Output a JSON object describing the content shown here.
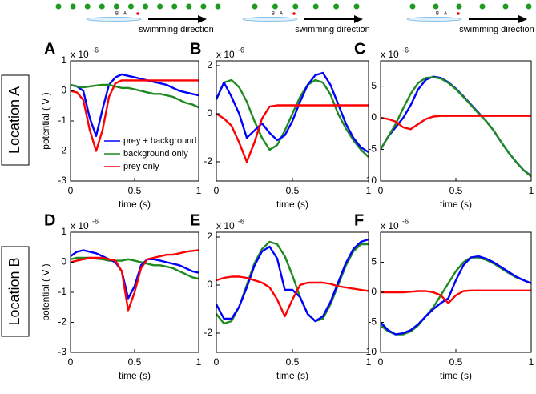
{
  "row_labels": [
    "Location A",
    "Location B"
  ],
  "schematics": [
    {
      "fish_labels": [
        "B",
        "A"
      ],
      "text": "swimming direction"
    },
    {
      "fish_labels": [
        "B",
        "A"
      ],
      "text": "swimming direction"
    },
    {
      "fish_labels": [
        "B",
        "A"
      ],
      "text": "swimming direction"
    }
  ],
  "chart_data": [
    {
      "type": "line",
      "label": "A",
      "multiplier": {
        "base": "x 10",
        "exponent": "-6"
      },
      "xlabel": "time (s)",
      "ylabel": "potential ( V )",
      "legend": true,
      "x": [
        0,
        0.05,
        0.1,
        0.15,
        0.2,
        0.25,
        0.3,
        0.35,
        0.4,
        0.45,
        0.5,
        0.55,
        0.6,
        0.65,
        0.7,
        0.75,
        0.8,
        0.85,
        0.9,
        0.95,
        1
      ],
      "xlim": [
        0,
        1
      ],
      "xticks": [
        0,
        0.5,
        1
      ],
      "ylim": [
        -3,
        1
      ],
      "yticks": [
        -3,
        -2,
        -1,
        0,
        1
      ],
      "series": [
        {
          "name": "prey + background",
          "color": "#0000ff",
          "values": [
            0.2,
            0.15,
            0,
            -0.9,
            -1.5,
            -0.6,
            0.2,
            0.45,
            0.55,
            0.5,
            0.45,
            0.4,
            0.35,
            0.3,
            0.25,
            0.2,
            0.1,
            0,
            -0.05,
            -0.1,
            -0.15
          ]
        },
        {
          "name": "background only",
          "color": "#1f8a1f",
          "values": [
            0.2,
            0.15,
            0.12,
            0.15,
            0.18,
            0.2,
            0.2,
            0.15,
            0.1,
            0.1,
            0.05,
            0,
            -0.05,
            -0.1,
            -0.1,
            -0.15,
            -0.2,
            -0.3,
            -0.4,
            -0.45,
            -0.55
          ]
        },
        {
          "name": "prey only",
          "color": "#ff0000",
          "values": [
            0,
            -0.05,
            -0.3,
            -1.3,
            -2.0,
            -1.3,
            -0.2,
            0.25,
            0.35,
            0.35,
            0.35,
            0.35,
            0.35,
            0.35,
            0.35,
            0.35,
            0.35,
            0.35,
            0.35,
            0.35,
            0.35
          ]
        }
      ]
    },
    {
      "type": "line",
      "label": "B",
      "multiplier": {
        "base": "x 10",
        "exponent": "-6"
      },
      "xlabel": "time (s)",
      "x": [
        0,
        0.05,
        0.1,
        0.15,
        0.2,
        0.25,
        0.3,
        0.35,
        0.4,
        0.45,
        0.5,
        0.55,
        0.6,
        0.65,
        0.7,
        0.75,
        0.8,
        0.85,
        0.9,
        0.95,
        1
      ],
      "xlim": [
        0,
        1
      ],
      "xticks": [
        0,
        0.5,
        1
      ],
      "ylim": [
        -2.8,
        2.2
      ],
      "yticks": [
        -2,
        0,
        2
      ],
      "series": [
        {
          "color": "#1f8a1f",
          "values": [
            0.6,
            1.3,
            1.4,
            1.1,
            0.5,
            -0.3,
            -1.0,
            -1.5,
            -1.3,
            -0.7,
            0,
            0.7,
            1.2,
            1.4,
            1.3,
            0.8,
            0,
            -0.6,
            -1.1,
            -1.5,
            -1.8
          ]
        },
        {
          "color": "#0000ff",
          "values": [
            0.6,
            1.3,
            0.7,
            0,
            -1.0,
            -0.7,
            -0.4,
            -0.8,
            -1.1,
            -0.9,
            -0.3,
            0.5,
            1.2,
            1.6,
            1.7,
            1.2,
            0.4,
            -0.4,
            -1.0,
            -1.4,
            -1.6
          ]
        },
        {
          "color": "#ff0000",
          "values": [
            0,
            -0.2,
            -0.5,
            -1.2,
            -2.0,
            -1.2,
            -0.2,
            0.3,
            0.35,
            0.35,
            0.35,
            0.35,
            0.35,
            0.35,
            0.35,
            0.35,
            0.35,
            0.35,
            0.35,
            0.35,
            0.35
          ]
        }
      ]
    },
    {
      "type": "line",
      "label": "C",
      "multiplier": {
        "base": "x 10",
        "exponent": "-6"
      },
      "xlabel": "time (s)",
      "x": [
        0,
        0.05,
        0.1,
        0.15,
        0.2,
        0.25,
        0.3,
        0.35,
        0.4,
        0.45,
        0.5,
        0.55,
        0.6,
        0.65,
        0.7,
        0.75,
        0.8,
        0.85,
        0.9,
        0.95,
        1
      ],
      "xlim": [
        0,
        1
      ],
      "xticks": [
        0,
        0.5,
        1
      ],
      "ylim": [
        -10,
        9
      ],
      "yticks": [
        -10,
        -5,
        0,
        5
      ],
      "series": [
        {
          "color": "#0000ff",
          "values": [
            -5,
            -3,
            -1.5,
            0,
            2,
            4.5,
            6,
            6.5,
            6.3,
            5.6,
            4.6,
            3.4,
            2.1,
            0.8,
            -0.5,
            -2,
            -3.8,
            -5.5,
            -7,
            -8.3,
            -9.2
          ]
        },
        {
          "color": "#1f8a1f",
          "values": [
            -5,
            -3,
            -1,
            1.5,
            3.8,
            5.5,
            6.3,
            6.4,
            6.2,
            5.5,
            4.5,
            3.3,
            2,
            0.7,
            -0.5,
            -2,
            -3.8,
            -5.5,
            -7,
            -8.3,
            -9.3
          ]
        },
        {
          "color": "#ff0000",
          "values": [
            0,
            -0.2,
            -0.6,
            -1.5,
            -1.8,
            -1,
            -0.2,
            0.2,
            0.3,
            0.3,
            0.3,
            0.3,
            0.3,
            0.3,
            0.3,
            0.3,
            0.3,
            0.3,
            0.3,
            0.3,
            0.3
          ]
        }
      ]
    },
    {
      "type": "line",
      "label": "D",
      "multiplier": {
        "base": "x 10",
        "exponent": "-6"
      },
      "xlabel": "time (s)",
      "ylabel": "potential ( V )",
      "x": [
        0,
        0.05,
        0.1,
        0.15,
        0.2,
        0.25,
        0.3,
        0.35,
        0.4,
        0.45,
        0.5,
        0.55,
        0.6,
        0.65,
        0.7,
        0.75,
        0.8,
        0.85,
        0.9,
        0.95,
        1
      ],
      "xlim": [
        0,
        1
      ],
      "xticks": [
        0,
        0.5,
        1
      ],
      "ylim": [
        -3,
        1
      ],
      "yticks": [
        -3,
        -2,
        -1,
        0,
        1
      ],
      "series": [
        {
          "color": "#1f8a1f",
          "values": [
            0.1,
            0.15,
            0.15,
            0.15,
            0.12,
            0.1,
            0.05,
            0.05,
            0.05,
            0.1,
            0.05,
            0,
            -0.05,
            -0.1,
            -0.1,
            -0.15,
            -0.2,
            -0.3,
            -0.4,
            -0.5,
            -0.55
          ]
        },
        {
          "color": "#0000ff",
          "values": [
            0.2,
            0.35,
            0.4,
            0.35,
            0.3,
            0.2,
            0.1,
            0,
            -0.3,
            -1.2,
            -0.8,
            -0.1,
            0.1,
            0.1,
            0.05,
            0,
            -0.05,
            -0.1,
            -0.2,
            -0.3,
            -0.35
          ]
        },
        {
          "color": "#ff0000",
          "values": [
            0,
            0.05,
            0.1,
            0.15,
            0.15,
            0.15,
            0.1,
            0.05,
            -0.3,
            -1.6,
            -1.0,
            -0.2,
            0.1,
            0.15,
            0.2,
            0.25,
            0.25,
            0.3,
            0.35,
            0.38,
            0.4
          ]
        }
      ]
    },
    {
      "type": "line",
      "label": "E",
      "multiplier": {
        "base": "x 10",
        "exponent": "-6"
      },
      "xlabel": "time (s)",
      "x": [
        0,
        0.05,
        0.1,
        0.15,
        0.2,
        0.25,
        0.3,
        0.35,
        0.4,
        0.45,
        0.5,
        0.55,
        0.6,
        0.65,
        0.7,
        0.75,
        0.8,
        0.85,
        0.9,
        0.95,
        1
      ],
      "xlim": [
        0,
        1
      ],
      "xticks": [
        0,
        0.5,
        1
      ],
      "ylim": [
        -2.8,
        2.2
      ],
      "yticks": [
        -2,
        0,
        2
      ],
      "series": [
        {
          "color": "#1f8a1f",
          "values": [
            -1.2,
            -1.6,
            -1.5,
            -0.9,
            0,
            0.9,
            1.5,
            1.8,
            1.7,
            1.2,
            0.4,
            -0.5,
            -1.2,
            -1.5,
            -1.4,
            -0.8,
            0,
            0.8,
            1.4,
            1.7,
            1.7
          ]
        },
        {
          "color": "#0000ff",
          "values": [
            -0.8,
            -1.4,
            -1.4,
            -0.9,
            -0.1,
            0.8,
            1.4,
            1.6,
            1.1,
            -0.2,
            -0.2,
            -0.5,
            -1.2,
            -1.5,
            -1.3,
            -0.7,
            0.1,
            0.9,
            1.5,
            1.8,
            1.9
          ]
        },
        {
          "color": "#ff0000",
          "values": [
            0.2,
            0.3,
            0.35,
            0.35,
            0.3,
            0.2,
            0.1,
            -0.1,
            -0.6,
            -1.3,
            -0.6,
            0,
            0.1,
            0.1,
            0.1,
            0.05,
            -0.05,
            -0.1,
            -0.15,
            -0.2,
            -0.25
          ]
        }
      ]
    },
    {
      "type": "line",
      "label": "F",
      "multiplier": {
        "base": "x 10",
        "exponent": "-6"
      },
      "xlabel": "time (s)",
      "x": [
        0,
        0.05,
        0.1,
        0.15,
        0.2,
        0.25,
        0.3,
        0.35,
        0.4,
        0.45,
        0.5,
        0.55,
        0.6,
        0.65,
        0.7,
        0.75,
        0.8,
        0.85,
        0.9,
        0.95,
        1
      ],
      "xlim": [
        0,
        1
      ],
      "xticks": [
        0,
        0.5,
        1
      ],
      "ylim": [
        -10,
        10
      ],
      "yticks": [
        -10,
        -5,
        0,
        5
      ],
      "series": [
        {
          "color": "#1f8a1f",
          "values": [
            -5.5,
            -6.5,
            -7,
            -7,
            -6.5,
            -5.5,
            -4,
            -2.5,
            -0.5,
            1.5,
            3.5,
            5,
            5.8,
            5.8,
            5.4,
            4.8,
            4,
            3.2,
            2.5,
            2,
            1.5
          ]
        },
        {
          "color": "#0000ff",
          "values": [
            -5,
            -6.3,
            -7,
            -6.8,
            -6.3,
            -5.3,
            -4,
            -2.8,
            -1.8,
            -1,
            2,
            4.5,
            5.8,
            6,
            5.6,
            5,
            4.2,
            3.4,
            2.6,
            2,
            1.5
          ]
        },
        {
          "color": "#ff0000",
          "values": [
            0,
            0,
            0,
            0,
            0.1,
            0.2,
            0.2,
            0,
            -0.5,
            -1.8,
            -0.5,
            0.2,
            0.3,
            0.3,
            0.3,
            0.3,
            0.3,
            0.3,
            0.3,
            0.3,
            0.3
          ]
        }
      ]
    }
  ]
}
